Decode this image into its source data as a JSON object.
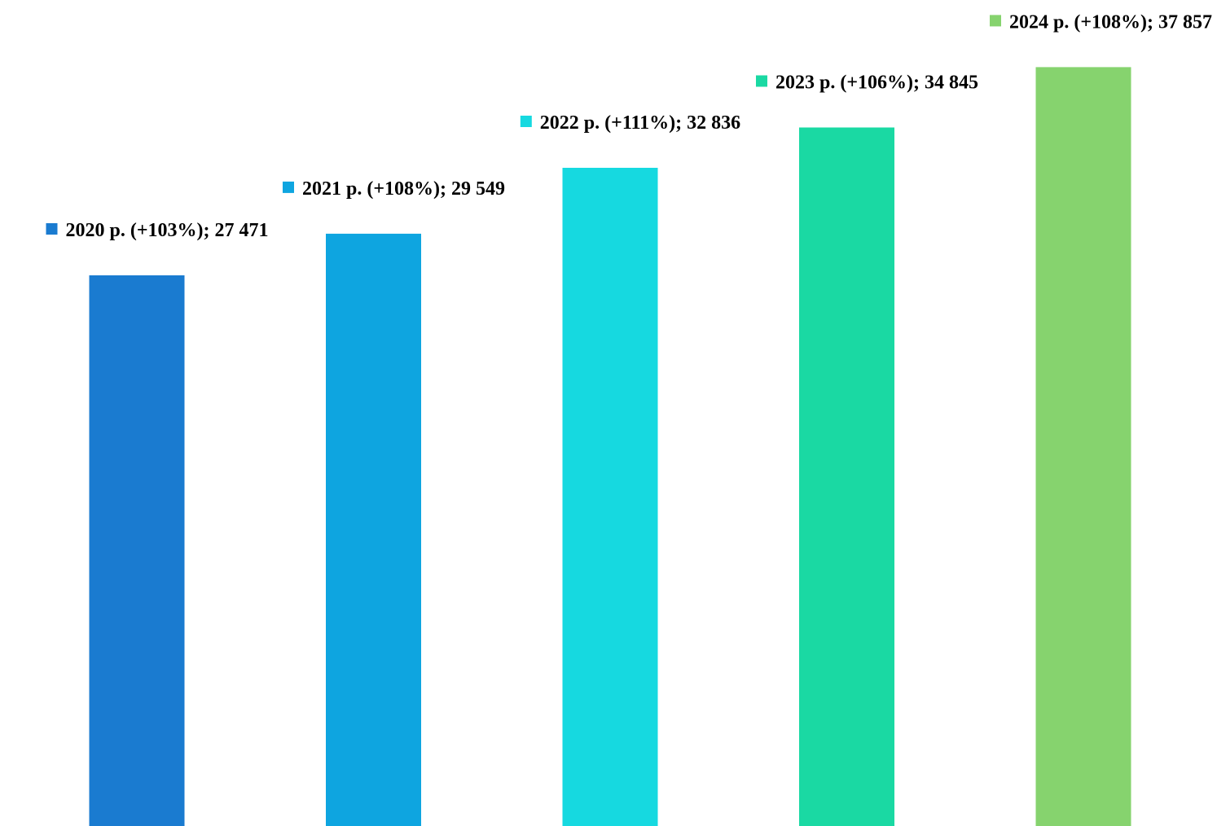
{
  "chart_data": {
    "type": "bar",
    "title": "",
    "xlabel": "",
    "ylabel": "",
    "categories": [
      "2020 р.",
      "2021 р.",
      "2022 р.",
      "2023 р.",
      "2024 р."
    ],
    "values": [
      27471,
      29549,
      32836,
      34845,
      37857
    ],
    "growth": [
      "+103%",
      "+108%",
      "+111%",
      "+106%",
      "+108%"
    ],
    "data_labels": [
      "2020 р. (+103%); 27 471",
      "2021 р. (+108%); 29 549",
      "2022 р. (+111%); 32 836",
      "2023 р. (+106%); 34 845",
      "2024 р. (+108%); 37 857"
    ],
    "colors": [
      "#1a7bd0",
      "#0ea5e0",
      "#16d9e0",
      "#1ad9a3",
      "#86d36e"
    ],
    "ylim": [
      0,
      40000
    ],
    "grid": false,
    "axes_visible": false,
    "legend": "none"
  }
}
